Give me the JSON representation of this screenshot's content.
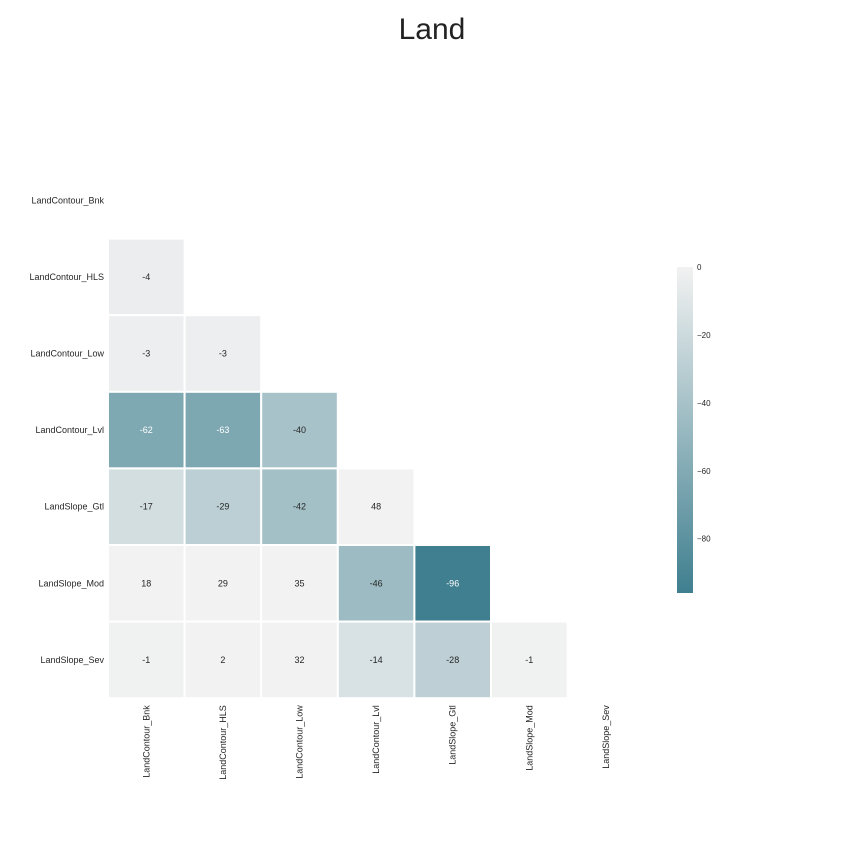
{
  "chart_data": {
    "type": "heatmap",
    "title": "Land",
    "labels": [
      "LandContour_Bnk",
      "LandContour_HLS",
      "LandContour_Low",
      "LandContour_Lvl",
      "LandSlope_Gtl",
      "LandSlope_Mod",
      "LandSlope_Sev"
    ],
    "mask": "upper-triangle",
    "values": [
      [
        null,
        null,
        null,
        null,
        null,
        null,
        null
      ],
      [
        -4,
        null,
        null,
        null,
        null,
        null,
        null
      ],
      [
        -3,
        -3,
        null,
        null,
        null,
        null,
        null
      ],
      [
        -62,
        -63,
        -40,
        null,
        null,
        null,
        null
      ],
      [
        -17,
        -29,
        -42,
        48,
        null,
        null,
        null
      ],
      [
        18,
        29,
        35,
        -46,
        -96,
        null,
        null
      ],
      [
        -1,
        2,
        32,
        -14,
        -28,
        -1,
        null
      ]
    ],
    "colorbar": {
      "range": [
        -96,
        0
      ],
      "ticks": [
        0,
        -20,
        -40,
        -60,
        -80
      ],
      "colors": {
        "low": "#3f7f8f",
        "high": "#f2f2f2"
      }
    }
  }
}
